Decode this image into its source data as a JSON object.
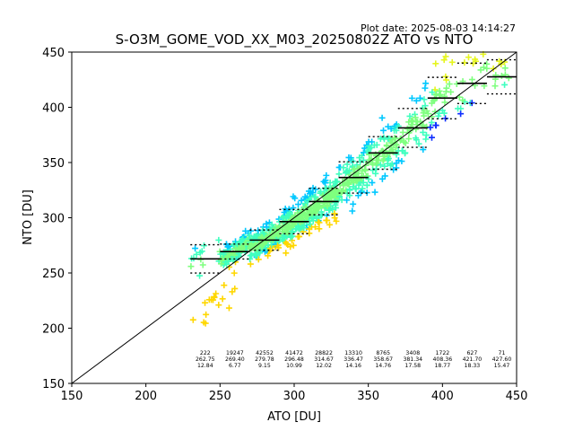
{
  "chart_data": {
    "type": "scatter",
    "title": "S-O3M_GOME_VOD_XX_M03_20250802Z ATO vs NTO",
    "plot_date": "Plot date: 2025-08-03 14:14:27",
    "xlabel": "ATO [DU]",
    "ylabel": "NTO [DU]",
    "xlim": [
      150,
      450
    ],
    "ylim": [
      150,
      450
    ],
    "x_ticks": [
      "150",
      "200",
      "250",
      "300",
      "350",
      "400",
      "450"
    ],
    "y_ticks": [
      "150",
      "200",
      "250",
      "300",
      "350",
      "400",
      "450"
    ],
    "grid": false,
    "reference_line": "y = x",
    "marker": "+",
    "colors": {
      "dense": "#7fff7f",
      "medium": "#3fffbf",
      "sparse": "#00c8ff",
      "edge_low": "#ffd700",
      "edge_high": "#e6f51e",
      "outlier": "#0f2fff",
      "bin_mean": "#000000"
    },
    "bins": [
      {
        "x_min": 230,
        "x_max": 250,
        "count": "222",
        "mean": "262.75",
        "std": "12.84"
      },
      {
        "x_min": 250,
        "x_max": 270,
        "count": "19247",
        "mean": "269.40",
        "std": "6.77"
      },
      {
        "x_min": 270,
        "x_max": 290,
        "count": "42552",
        "mean": "279.78",
        "std": "9.15"
      },
      {
        "x_min": 290,
        "x_max": 310,
        "count": "41472",
        "mean": "296.48",
        "std": "10.99"
      },
      {
        "x_min": 310,
        "x_max": 330,
        "count": "28822",
        "mean": "314.67",
        "std": "12.02"
      },
      {
        "x_min": 330,
        "x_max": 350,
        "count": "13310",
        "mean": "336.47",
        "std": "14.16"
      },
      {
        "x_min": 350,
        "x_max": 370,
        "count": "8765",
        "mean": "358.67",
        "std": "14.76"
      },
      {
        "x_min": 370,
        "x_max": 390,
        "count": "3408",
        "mean": "381.34",
        "std": "17.58"
      },
      {
        "x_min": 390,
        "x_max": 410,
        "count": "1722",
        "mean": "408.36",
        "std": "18.77"
      },
      {
        "x_min": 410,
        "x_max": 430,
        "count": "627",
        "mean": "421.70",
        "std": "18.33"
      },
      {
        "x_min": 430,
        "x_max": 450,
        "count": "71",
        "mean": "427.60",
        "std": "15.47"
      }
    ]
  }
}
